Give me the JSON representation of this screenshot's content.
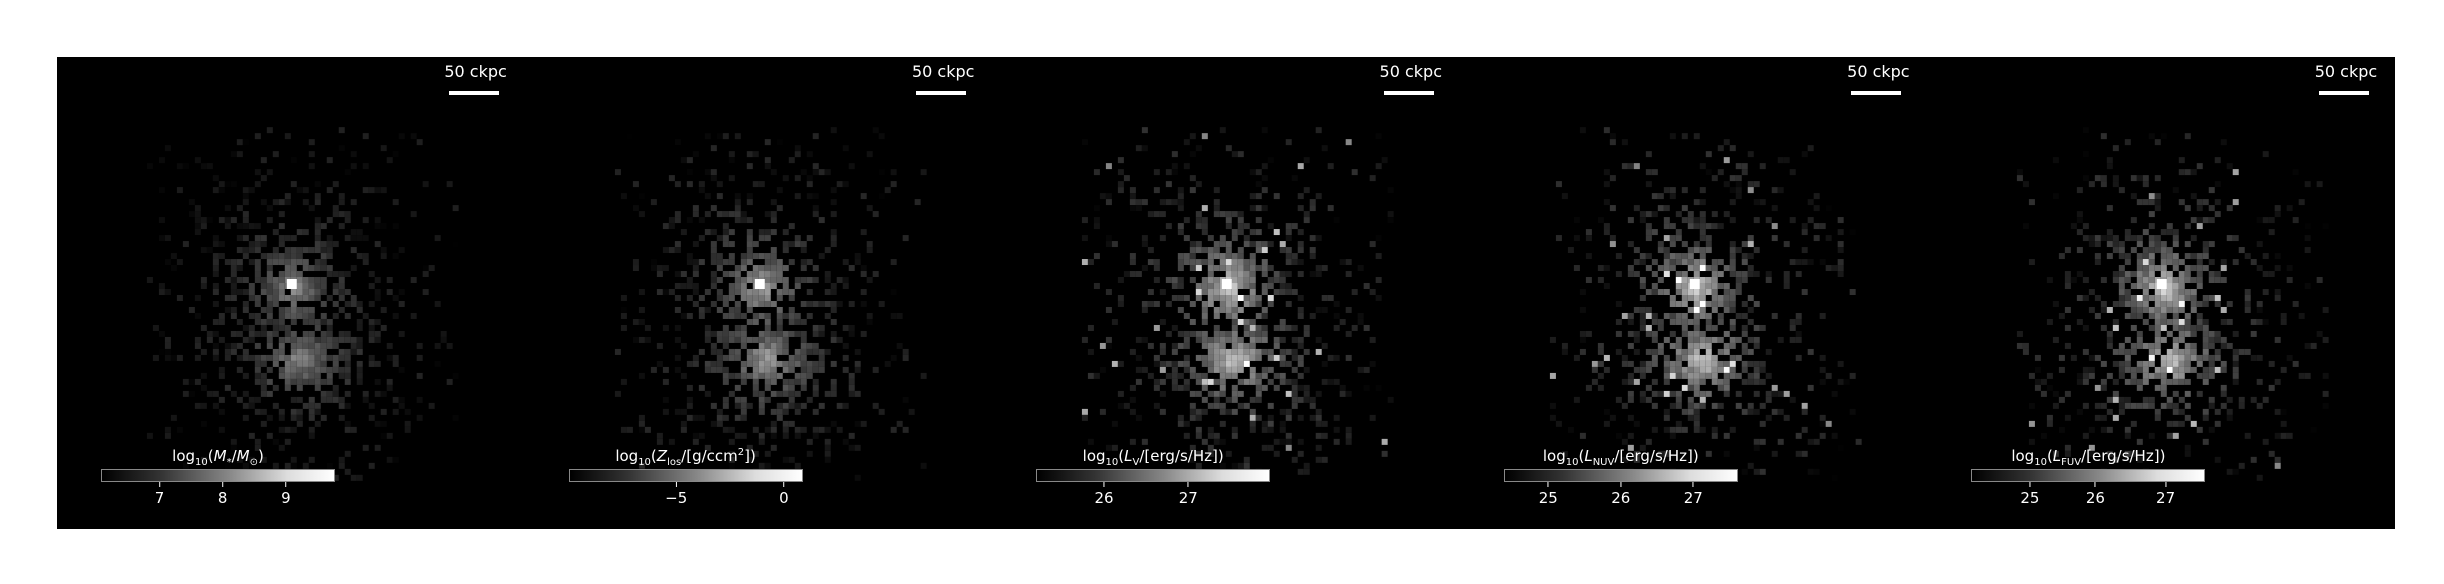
{
  "scale_bar_label": "50 ckpc",
  "panels": [
    {
      "id": "mass",
      "colorbar_title_html": "log<sub>10</sub>(<i>M</i><sub>*</sub>/<i>M</i><sub>⊙</sub>)",
      "ticks": [
        {
          "label": "7",
          "frac": 0.25
        },
        {
          "label": "8",
          "frac": 0.52
        },
        {
          "label": "9",
          "frac": 0.79
        }
      ]
    },
    {
      "id": "metallicity",
      "colorbar_title_html": "log<sub>10</sub>(<i>Z</i><sub>los</sub>/[g/ccm<sup>2</sup>])",
      "ticks": [
        {
          "label": "−5",
          "frac": 0.46
        },
        {
          "label": "0",
          "frac": 0.92
        }
      ]
    },
    {
      "id": "lum-v",
      "colorbar_title_html": "log<sub>10</sub>(<i>L</i><sub>V</sub>/[erg/s/Hz])",
      "ticks": [
        {
          "label": "26",
          "frac": 0.29
        },
        {
          "label": "27",
          "frac": 0.65
        }
      ]
    },
    {
      "id": "lum-nuv",
      "colorbar_title_html": "log<sub>10</sub>(<i>L</i><sub>NUV</sub>/[erg/s/Hz])",
      "ticks": [
        {
          "label": "25",
          "frac": 0.19
        },
        {
          "label": "26",
          "frac": 0.5
        },
        {
          "label": "27",
          "frac": 0.81
        }
      ]
    },
    {
      "id": "lum-fuv",
      "colorbar_title_html": "log<sub>10</sub>(<i>L</i><sub>FUV</sub>/[erg/s/Hz])",
      "ticks": [
        {
          "label": "25",
          "frac": 0.25
        },
        {
          "label": "26",
          "frac": 0.53
        },
        {
          "label": "27",
          "frac": 0.83
        }
      ]
    }
  ]
}
